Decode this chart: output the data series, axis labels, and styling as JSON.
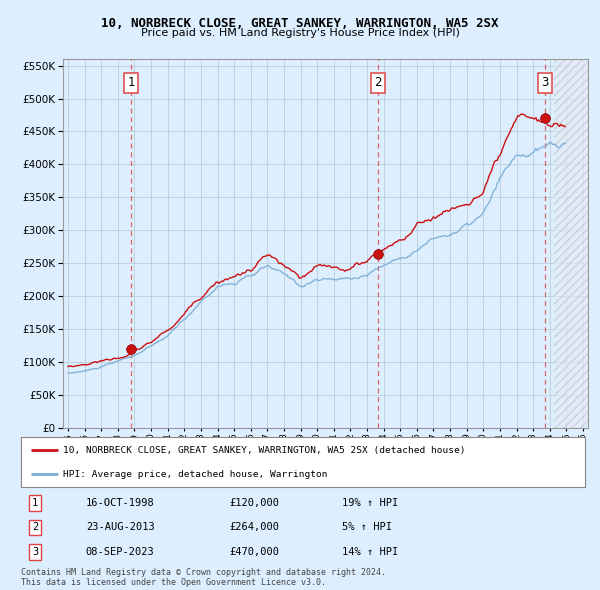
{
  "title": "10, NORBRECK CLOSE, GREAT SANKEY, WARRINGTON, WA5 2SX",
  "subtitle": "Price paid vs. HM Land Registry's House Price Index (HPI)",
  "legend_line1": "10, NORBRECK CLOSE, GREAT SANKEY, WARRINGTON, WA5 2SX (detached house)",
  "legend_line2": "HPI: Average price, detached house, Warrington",
  "footer1": "Contains HM Land Registry data © Crown copyright and database right 2024.",
  "footer2": "This data is licensed under the Open Government Licence v3.0.",
  "transactions": [
    {
      "num": 1,
      "date": "16-OCT-1998",
      "price": 120000,
      "hpi_pct": "19%",
      "x": 1998.8
    },
    {
      "num": 2,
      "date": "23-AUG-2013",
      "price": 264000,
      "hpi_pct": "5%",
      "x": 2013.65
    },
    {
      "num": 3,
      "date": "08-SEP-2023",
      "price": 470000,
      "hpi_pct": "14%",
      "x": 2023.7
    }
  ],
  "hpi_line_color": "#7aadd4",
  "price_line_color": "#cc1111",
  "sale_dot_color": "#cc1111",
  "vline_color": "#dd4444",
  "background_color": "#ddeeff",
  "plot_bg_color": "#ddeeff",
  "ylim": [
    0,
    560000
  ],
  "xlim_start": 1994.7,
  "xlim_end": 2026.3,
  "future_start": 2024.25,
  "ytick_step": 50000
}
